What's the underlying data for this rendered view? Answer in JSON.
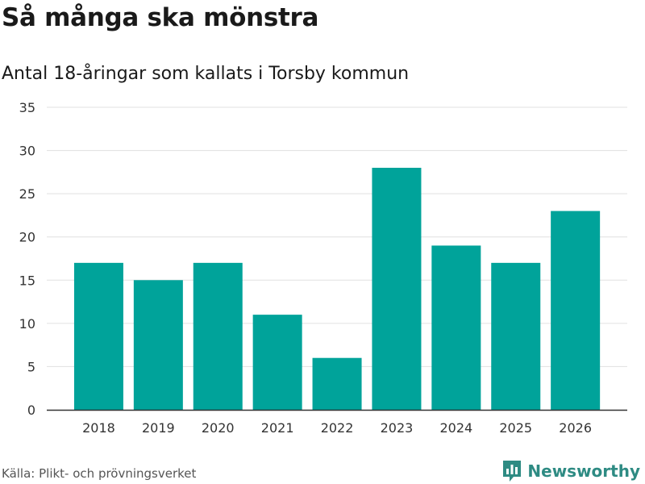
{
  "chart_data": {
    "type": "bar",
    "title": "Så många ska mönstra",
    "subtitle": "Antal 18-åringar som kallats i Torsby kommun",
    "categories": [
      "2018",
      "2019",
      "2020",
      "2021",
      "2022",
      "2023",
      "2024",
      "2025",
      "2026"
    ],
    "values": [
      17,
      15,
      17,
      11,
      6,
      28,
      19,
      17,
      23
    ],
    "ylim": [
      0,
      35
    ],
    "yticks": [
      0,
      5,
      10,
      15,
      20,
      25,
      30,
      35
    ],
    "xlabel": "",
    "ylabel": "",
    "grid": true,
    "bar_color": "#00a39a",
    "grid_color": "#e0e0e0",
    "axis_color": "#333333"
  },
  "source": "Källa: Plikt- och prövningsverket",
  "brand": {
    "name": "Newsworthy",
    "icon": "bar-chart-logo-icon",
    "color": "#2e8b83"
  }
}
